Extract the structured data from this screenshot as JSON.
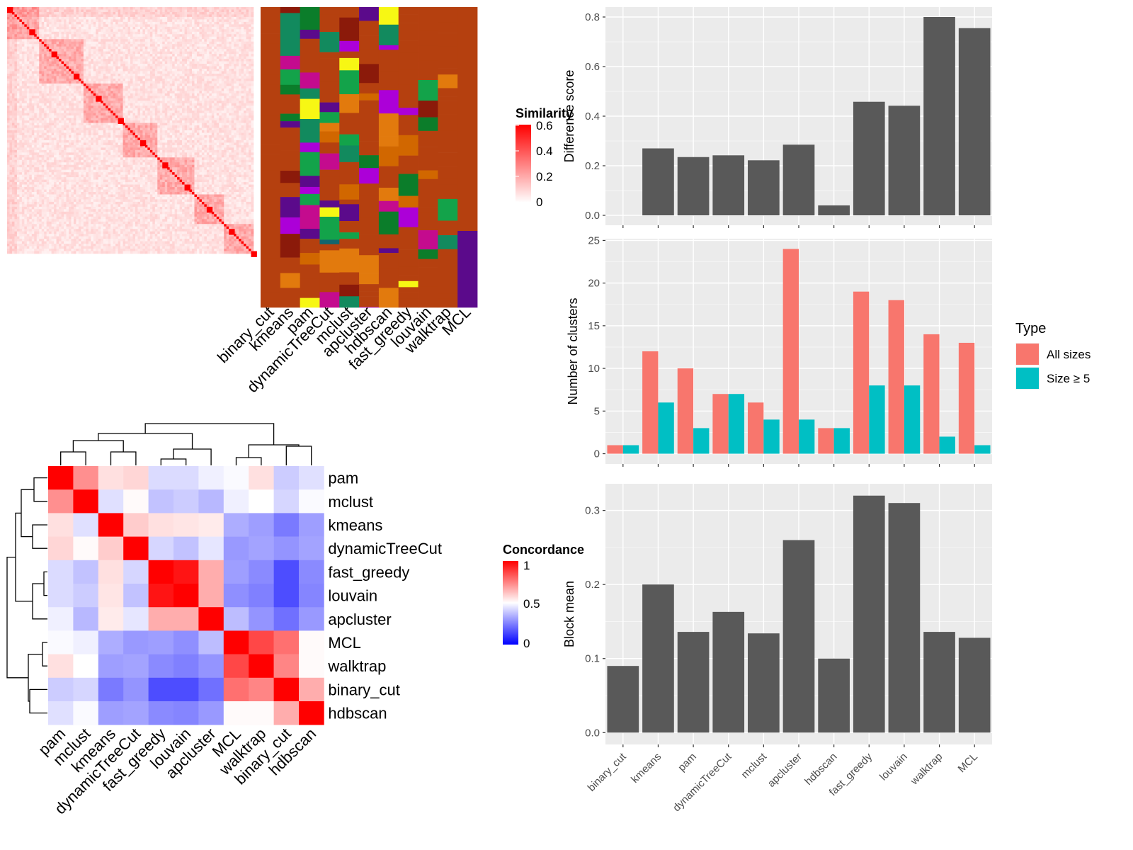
{
  "chart_data": [
    {
      "type": "heatmap",
      "panel": "top-left",
      "legend": {
        "title": "Similarity",
        "ticks": [
          "0",
          "0.2",
          "0.4",
          "0.6"
        ],
        "colors": {
          "low": "#ffffff",
          "high": "#ff0000"
        }
      },
      "method_labels": [
        "binary_cut",
        "kmeans",
        "pam",
        "dynamicTreeCut",
        "mclust",
        "apcluster",
        "hdbscan",
        "fast_greedy",
        "louvain",
        "walktrap",
        "MCL"
      ],
      "n_terms": 100,
      "class_palette": [
        "#b5400f",
        "#12656e",
        "#128a5e",
        "#d16700",
        "#ac00d8",
        "#f7f714",
        "#8b1a0a",
        "#13a34a",
        "#5b0a8b",
        "#e27a0d",
        "#0b7d2a",
        "#c40b8e"
      ]
    },
    {
      "type": "bar",
      "panel": "top-right",
      "categories": [
        "binary_cut",
        "kmeans",
        "pam",
        "dynamicTreeCut",
        "mclust",
        "apcluster",
        "hdbscan",
        "fast_greedy",
        "louvain",
        "walktrap",
        "MCL"
      ],
      "values": [
        0.0,
        0.27,
        0.235,
        0.242,
        0.222,
        0.285,
        0.04,
        0.458,
        0.442,
        0.8,
        0.755
      ],
      "ylabel": "Difference score",
      "ylim": [
        -0.04,
        0.84
      ],
      "yticks": [
        "0.0",
        "0.2",
        "0.4",
        "0.6",
        "0.8"
      ],
      "color": "#595959"
    },
    {
      "type": "bar",
      "panel": "middle-right",
      "categories": [
        "binary_cut",
        "kmeans",
        "pam",
        "dynamicTreeCut",
        "mclust",
        "apcluster",
        "hdbscan",
        "fast_greedy",
        "louvain",
        "walktrap",
        "MCL"
      ],
      "series": [
        {
          "name": "All sizes",
          "color": "#f8766d",
          "values": [
            1,
            12,
            10,
            7,
            6,
            24,
            3,
            19,
            18,
            14,
            13
          ]
        },
        {
          "name": "Size ≥ 5",
          "color": "#00bfc4",
          "values": [
            1,
            6,
            3,
            7,
            4,
            4,
            3,
            8,
            8,
            2,
            1
          ]
        }
      ],
      "ylabel": "Number of clusters",
      "ylim": [
        -1.2,
        25.2
      ],
      "yticks": [
        "0",
        "5",
        "10",
        "15",
        "20",
        "25"
      ],
      "legend": {
        "title": "Type",
        "placement": "right"
      }
    },
    {
      "type": "bar",
      "panel": "bottom-right",
      "categories": [
        "binary_cut",
        "kmeans",
        "pam",
        "dynamicTreeCut",
        "mclust",
        "apcluster",
        "hdbscan",
        "fast_greedy",
        "louvain",
        "walktrap",
        "MCL"
      ],
      "values": [
        0.09,
        0.2,
        0.136,
        0.163,
        0.134,
        0.26,
        0.1,
        0.32,
        0.31,
        0.136,
        0.128
      ],
      "ylabel": "Block mean",
      "ylim": [
        -0.016,
        0.336
      ],
      "yticks": [
        "0.0",
        "0.1",
        "0.2",
        "0.3"
      ],
      "color": "#595959"
    },
    {
      "type": "heatmap",
      "panel": "bottom-left",
      "labels": [
        "pam",
        "mclust",
        "kmeans",
        "dynamicTreeCut",
        "fast_greedy",
        "louvain",
        "apcluster",
        "MCL",
        "walktrap",
        "binary_cut",
        "hdbscan"
      ],
      "matrix": [
        [
          1.0,
          0.72,
          0.56,
          0.58,
          0.43,
          0.43,
          0.47,
          0.49,
          0.56,
          0.4,
          0.44
        ],
        [
          0.72,
          1.0,
          0.44,
          0.51,
          0.38,
          0.4,
          0.36,
          0.47,
          0.5,
          0.42,
          0.49
        ],
        [
          0.56,
          0.44,
          1.0,
          0.6,
          0.56,
          0.55,
          0.54,
          0.34,
          0.31,
          0.24,
          0.31
        ],
        [
          0.58,
          0.51,
          0.6,
          1.0,
          0.42,
          0.38,
          0.45,
          0.3,
          0.32,
          0.29,
          0.32
        ],
        [
          0.43,
          0.38,
          0.56,
          0.42,
          1.0,
          0.96,
          0.66,
          0.31,
          0.27,
          0.15,
          0.27
        ],
        [
          0.43,
          0.4,
          0.55,
          0.38,
          0.96,
          1.0,
          0.66,
          0.28,
          0.25,
          0.15,
          0.26
        ],
        [
          0.47,
          0.36,
          0.54,
          0.45,
          0.66,
          0.66,
          1.0,
          0.37,
          0.29,
          0.22,
          0.3
        ],
        [
          0.49,
          0.47,
          0.34,
          0.3,
          0.31,
          0.28,
          0.37,
          1.0,
          0.86,
          0.78,
          0.51
        ],
        [
          0.56,
          0.5,
          0.31,
          0.32,
          0.27,
          0.25,
          0.29,
          0.86,
          1.0,
          0.74,
          0.51
        ],
        [
          0.4,
          0.42,
          0.24,
          0.29,
          0.15,
          0.15,
          0.22,
          0.78,
          0.74,
          1.0,
          0.66
        ],
        [
          0.44,
          0.49,
          0.31,
          0.32,
          0.27,
          0.26,
          0.3,
          0.51,
          0.51,
          0.66,
          1.0
        ]
      ],
      "legend": {
        "title": "Concordance",
        "ticks": [
          "0",
          "0.5",
          "1"
        ],
        "colors": {
          "low": "#0000ff",
          "mid": "#ffffff",
          "high": "#ff0000"
        }
      }
    }
  ]
}
